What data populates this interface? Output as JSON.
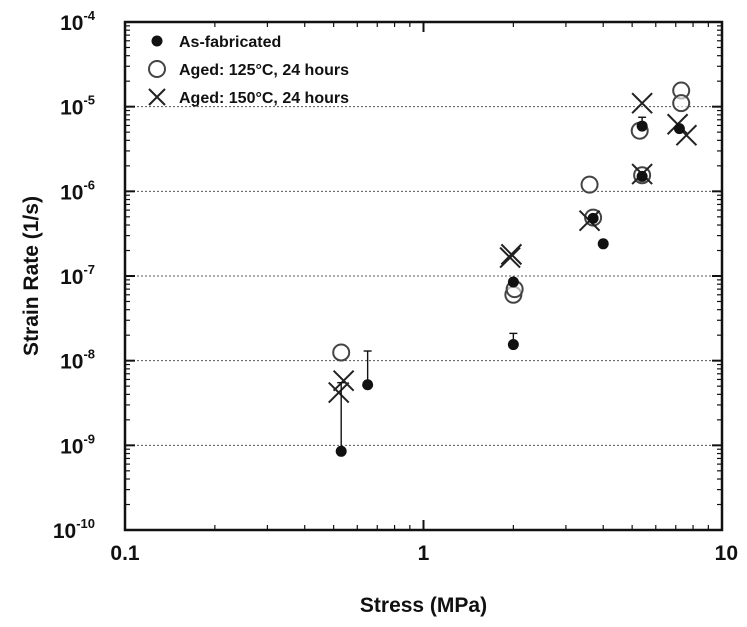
{
  "chart_data": {
    "type": "scatter",
    "xlabel": "Stress  (MPa)",
    "ylabel": "Strain Rate  (1/s)",
    "xscale": "log",
    "yscale": "log",
    "xlim": [
      0.1,
      10
    ],
    "ylim": [
      1e-10,
      0.0001
    ],
    "x_ticks": [
      {
        "value": 0.1,
        "label": "0.1"
      },
      {
        "value": 1,
        "label": "1"
      },
      {
        "value": 10,
        "label": "10"
      }
    ],
    "y_ticks": [
      {
        "value": 0.0001,
        "base": "10",
        "exp": "-4"
      },
      {
        "value": 1e-05,
        "base": "10",
        "exp": "-5"
      },
      {
        "value": 1e-06,
        "base": "10",
        "exp": "-6"
      },
      {
        "value": 1e-07,
        "base": "10",
        "exp": "-7"
      },
      {
        "value": 1e-08,
        "base": "10",
        "exp": "-8"
      },
      {
        "value": 1e-09,
        "base": "10",
        "exp": "-9"
      },
      {
        "value": 1e-10,
        "base": "10",
        "exp": "-10"
      }
    ],
    "grid": "horizontal dotted at decades",
    "legend_position": "top-left",
    "series": [
      {
        "name": "As-fabricated",
        "marker": "filled-circle",
        "color": "#111111",
        "points": [
          {
            "x": 0.53,
            "y": 8.5e-10,
            "err_up": 5.5e-09
          },
          {
            "x": 0.65,
            "y": 5.2e-09,
            "err_up": 1.3e-08
          },
          {
            "x": 2.0,
            "y": 1.55e-08,
            "err_up": 2.1e-08
          },
          {
            "x": 2.0,
            "y": 8.5e-08
          },
          {
            "x": 3.7,
            "y": 4.8e-07
          },
          {
            "x": 4.0,
            "y": 2.4e-07
          },
          {
            "x": 5.4,
            "y": 1.5e-06
          },
          {
            "x": 5.4,
            "y": 5.9e-06,
            "err_up": 7.5e-06
          },
          {
            "x": 7.2,
            "y": 5.5e-06
          }
        ]
      },
      {
        "name": "Aged: 125°C, 24 hours",
        "marker": "open-circle",
        "color": "#111111",
        "points": [
          {
            "x": 0.53,
            "y": 1.25e-08
          },
          {
            "x": 2.0,
            "y": 6e-08
          },
          {
            "x": 2.02,
            "y": 7e-08
          },
          {
            "x": 3.6,
            "y": 1.2e-06
          },
          {
            "x": 3.7,
            "y": 4.9e-07
          },
          {
            "x": 5.3,
            "y": 5.2e-06
          },
          {
            "x": 5.4,
            "y": 1.55e-06
          },
          {
            "x": 7.3,
            "y": 1.55e-05
          },
          {
            "x": 7.3,
            "y": 1.1e-05
          }
        ]
      },
      {
        "name": "Aged: 150°C, 24 hours",
        "marker": "x",
        "color": "#111111",
        "points": [
          {
            "x": 0.52,
            "y": 4.2e-09
          },
          {
            "x": 0.54,
            "y": 5.8e-09
          },
          {
            "x": 1.95,
            "y": 1.65e-07
          },
          {
            "x": 1.97,
            "y": 1.8e-07
          },
          {
            "x": 3.6,
            "y": 4.5e-07
          },
          {
            "x": 5.4,
            "y": 1.1e-05
          },
          {
            "x": 5.4,
            "y": 1.6e-06
          },
          {
            "x": 7.1,
            "y": 6.2e-06
          },
          {
            "x": 7.6,
            "y": 4.6e-06
          }
        ]
      }
    ]
  }
}
